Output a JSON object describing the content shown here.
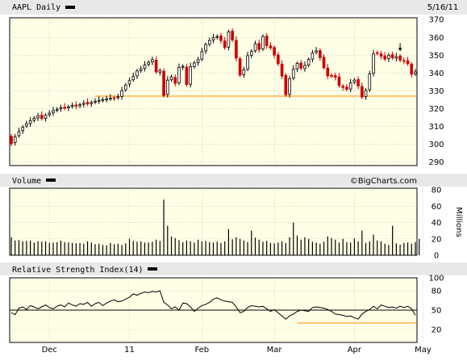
{
  "header": {
    "ticker_label": "AAPL Daily",
    "date_label": "5/16/11",
    "volume_label": "Volume",
    "rsi_label": "Relative Strength Index(14)",
    "watermark": "©BigCharts.com",
    "volume_unit": "Millions"
  },
  "colors": {
    "up": "#000000",
    "down": "#cc0000",
    "panel_bg": "#ffffe6",
    "strip_bg": "#e8e8e8",
    "support_line": "#ff8800",
    "grid": "#aaaaaa"
  },
  "chart_data": [
    {
      "name": "price",
      "type": "candlestick",
      "yticks": [
        290,
        300,
        310,
        320,
        330,
        340,
        350,
        360,
        370
      ],
      "ylim": [
        288,
        371
      ],
      "support_level": 327,
      "support_start_index": 22,
      "down_arrow_indices": [
        102
      ],
      "close": [
        300.2,
        304.1,
        307.0,
        309.6,
        311.5,
        313.1,
        314.6,
        316.0,
        314.4,
        316.2,
        317.4,
        318.8,
        319.6,
        320.5,
        320.2,
        321.0,
        321.7,
        321.4,
        322.2,
        323.0,
        322.6,
        323.4,
        324.1,
        324.6,
        325.1,
        325.4,
        325.8,
        326.0,
        326.6,
        330.0,
        333.2,
        335.7,
        338.0,
        341.1,
        342.3,
        344.5,
        346.0,
        347.5,
        340.6,
        341.4,
        327.4,
        336.0,
        337.8,
        334.2,
        343.1,
        343.7,
        333.5,
        343.5,
        345.6,
        347.4,
        352.0,
        356.0,
        358.2,
        359.8,
        360.5,
        358.2,
        354.2,
        363.1,
        358.5,
        348.4,
        338.8,
        341.8,
        349.7,
        352.2,
        356.4,
        353.2,
        360.5,
        355.4,
        354.1,
        350.0,
        345.2,
        338.3,
        327.8,
        336.7,
        342.1,
        345.4,
        342.7,
        344.2,
        347.6,
        351.2,
        352.4,
        348.6,
        343.0,
        338.4,
        338.2,
        337.6,
        333.0,
        331.9,
        330.8,
        334.4,
        336.0,
        332.7,
        326.5,
        330.2,
        339.5,
        350.7,
        351.0,
        349.4,
        347.8,
        350.0,
        348.5,
        349.1,
        347.2,
        346.7,
        345.2,
        339.3,
        340.6
      ],
      "open": [
        304.5,
        301.0,
        304.8,
        307.6,
        310.2,
        311.6,
        313.4,
        314.8,
        316.3,
        314.5,
        316.5,
        317.6,
        319.1,
        320.0,
        320.8,
        320.4,
        321.2,
        322.0,
        321.5,
        322.4,
        323.5,
        322.8,
        323.6,
        324.4,
        324.6,
        325.3,
        325.5,
        326.1,
        326.2,
        326.8,
        330.6,
        333.8,
        336.2,
        338.4,
        341.3,
        342.6,
        344.8,
        346.2,
        347.2,
        340.4,
        341.0,
        328.0,
        336.2,
        337.5,
        334.4,
        343.5,
        343.3,
        333.7,
        343.6,
        345.8,
        347.8,
        352.4,
        356.1,
        358.5,
        360.0,
        360.8,
        358.0,
        354.5,
        363.5,
        358.3,
        348.0,
        339.1,
        342.2,
        350.0,
        352.5,
        356.6,
        353.5,
        360.7,
        355.2,
        354.3,
        350.1,
        345.0,
        338.6,
        328.0,
        337.1,
        342.3,
        345.6,
        342.5,
        344.4,
        347.8,
        351.6,
        352.6,
        348.8,
        342.8,
        338.7,
        338.5,
        337.8,
        332.6,
        332.1,
        331.0,
        334.8,
        336.3,
        332.4,
        326.8,
        330.6,
        339.9,
        351.4,
        350.7,
        349.6,
        348.0,
        350.3,
        348.3,
        349.5,
        347.0,
        346.9,
        345.0,
        339.6
      ]
    },
    {
      "name": "volume",
      "type": "bar",
      "yticks": [
        0,
        20,
        40,
        60,
        80
      ],
      "ylim": [
        0,
        80
      ],
      "values": [
        22.0,
        18.0,
        18.5,
        17.0,
        17.5,
        18.0,
        15.5,
        17.0,
        16.5,
        17.0,
        15.0,
        15.5,
        16.0,
        18.0,
        16.0,
        15.5,
        15.0,
        14.5,
        15.0,
        14.0,
        17.0,
        15.5,
        13.5,
        14.0,
        12.5,
        12.0,
        15.0,
        13.5,
        14.0,
        12.5,
        14.5,
        20.0,
        17.5,
        16.5,
        17.0,
        15.5,
        15.5,
        16.5,
        19.0,
        17.5,
        68.0,
        36.0,
        23.0,
        21.0,
        18.5,
        16.0,
        18.0,
        17.0,
        15.5,
        19.0,
        17.0,
        17.5,
        16.0,
        15.5,
        16.5,
        15.0,
        17.0,
        32.0,
        19.5,
        22.0,
        20.0,
        18.0,
        16.0,
        30.0,
        21.5,
        19.0,
        16.5,
        17.5,
        15.0,
        14.5,
        15.5,
        17.0,
        15.0,
        22.0,
        40.0,
        24.0,
        19.0,
        22.0,
        20.0,
        16.5,
        15.5,
        14.0,
        16.5,
        23.0,
        21.0,
        19.0,
        15.5,
        20.0,
        16.0,
        15.5,
        20.5,
        17.0,
        30.0,
        15.0,
        17.0,
        25.0,
        18.0,
        17.0,
        14.0,
        12.5,
        36.0,
        14.5,
        13.0,
        15.0,
        15.5,
        14.0,
        16.0,
        20.0
      ]
    },
    {
      "name": "rsi",
      "type": "line",
      "yticks": [
        20,
        50,
        80,
        100
      ],
      "ylim": [
        0,
        100
      ],
      "reference_level": 50,
      "secondary_level": 30,
      "secondary_start_index": 75,
      "values": [
        46.0,
        43.0,
        53.0,
        55.0,
        51.0,
        57.0,
        55.0,
        52.0,
        55.0,
        58.0,
        54.0,
        52.0,
        56.0,
        58.0,
        55.0,
        61.0,
        58.0,
        56.0,
        60.0,
        59.0,
        62.0,
        56.0,
        60.0,
        62.0,
        57.0,
        61.0,
        64.0,
        66.0,
        63.0,
        64.0,
        67.0,
        70.0,
        75.0,
        73.0,
        76.0,
        78.0,
        77.0,
        79.0,
        78.0,
        80.0,
        62.0,
        58.0,
        52.0,
        55.0,
        50.0,
        61.0,
        60.0,
        55.0,
        48.0,
        53.0,
        57.0,
        59.0,
        62.0,
        67.0,
        69.0,
        66.0,
        64.0,
        63.0,
        62.0,
        55.0,
        46.0,
        48.0,
        54.0,
        57.0,
        56.0,
        55.0,
        56.0,
        52.0,
        48.0,
        51.0,
        46.0,
        41.0,
        36.0,
        41.0,
        44.0,
        48.0,
        50.0,
        49.0,
        48.0,
        54.0,
        55.0,
        54.0,
        53.0,
        51.0,
        48.0,
        44.0,
        43.0,
        42.0,
        40.0,
        41.0,
        38.0,
        36.0,
        44.0,
        48.0,
        51.0,
        56.0,
        52.0,
        58.0,
        56.0,
        54.0,
        55.0,
        53.0,
        56.0,
        54.0,
        56.0,
        52.0,
        42.0
      ]
    }
  ],
  "x_axis": {
    "labels": [
      {
        "text": "Dec",
        "index": 10
      },
      {
        "text": "11",
        "index": 31
      },
      {
        "text": "Feb",
        "index": 50
      },
      {
        "text": "Mar",
        "index": 69
      },
      {
        "text": "Apr",
        "index": 90
      },
      {
        "text": "May",
        "index": 108
      }
    ]
  }
}
